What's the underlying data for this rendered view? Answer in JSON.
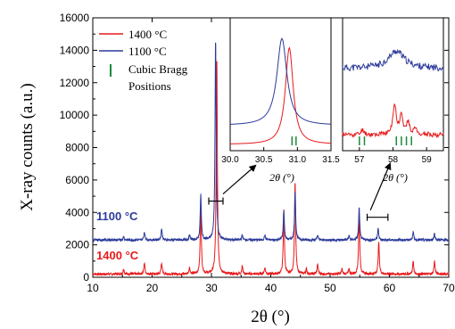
{
  "chart_data": {
    "type": "line",
    "xlabel": "2θ (°)",
    "ylabel": "X-ray counts (a.u.)",
    "xlim": [
      10,
      70
    ],
    "ylim": [
      0,
      16000
    ],
    "x_ticks": [
      10,
      20,
      30,
      40,
      50,
      60,
      70
    ],
    "y_ticks": [
      0,
      2000,
      4000,
      6000,
      8000,
      10000,
      12000,
      14000,
      16000
    ],
    "legend": {
      "placement": "top-left",
      "entries": [
        {
          "label": "1400 °C",
          "color": "#e8191b",
          "marker": "line"
        },
        {
          "label": "1100 °C",
          "color": "#2b3a9a",
          "marker": "line"
        },
        {
          "label": "Cubic Bragg",
          "label2": "Positions",
          "color": "#1a8a3a",
          "marker": "tick"
        }
      ]
    },
    "series": [
      {
        "name": "1400 °C",
        "color": "#e8191b",
        "baseline": 200,
        "peaks": [
          [
            15.2,
            300
          ],
          [
            18.7,
            700
          ],
          [
            21.6,
            700
          ],
          [
            26.3,
            400
          ],
          [
            28.2,
            4300
          ],
          [
            30.9,
            13500
          ],
          [
            35.2,
            500
          ],
          [
            39.0,
            400
          ],
          [
            42.2,
            4000
          ],
          [
            44.1,
            5700
          ],
          [
            46.0,
            300
          ],
          [
            47.9,
            600
          ],
          [
            52.0,
            300
          ],
          [
            53.2,
            300
          ],
          [
            54.9,
            3800
          ],
          [
            58.2,
            2000
          ],
          [
            64.0,
            800
          ],
          [
            67.6,
            800
          ]
        ]
      },
      {
        "name": "1100 °C",
        "color": "#2b3a9a",
        "baseline": 2300,
        "peaks": [
          [
            15.2,
            200
          ],
          [
            18.7,
            500
          ],
          [
            21.6,
            700
          ],
          [
            26.3,
            300
          ],
          [
            28.2,
            2800
          ],
          [
            30.7,
            12500
          ],
          [
            35.2,
            300
          ],
          [
            39.0,
            300
          ],
          [
            42.2,
            1800
          ],
          [
            44.1,
            3000
          ],
          [
            47.9,
            300
          ],
          [
            53.2,
            250
          ],
          [
            54.9,
            2000
          ],
          [
            58.1,
            700
          ],
          [
            64.0,
            500
          ],
          [
            67.6,
            400
          ]
        ]
      }
    ],
    "labels": {
      "label_1100": "1100 °C",
      "label_1400": "1400 °C"
    },
    "inset1": {
      "xlabel": "2θ (°)",
      "xlim": [
        30.0,
        31.5
      ],
      "x_ticks": [
        "30.0",
        "30.5",
        "31.0",
        "31.5"
      ],
      "peak_1100": 30.77,
      "peak_1400": 30.88,
      "bragg_ticks": [
        30.92,
        30.98
      ]
    },
    "inset2": {
      "xlabel": "2θ (°)",
      "xlim": [
        56.5,
        59.5
      ],
      "x_ticks": [
        "57",
        "58",
        "59"
      ],
      "bragg_ticks": [
        57.0,
        57.15,
        58.1,
        58.25,
        58.4,
        58.55
      ]
    },
    "zoom_markers": [
      {
        "x_from": 30.0,
        "x_to": 31.5,
        "y": 4700
      },
      {
        "x_from": 56.5,
        "x_to": 59.5,
        "y": 3700
      }
    ]
  }
}
